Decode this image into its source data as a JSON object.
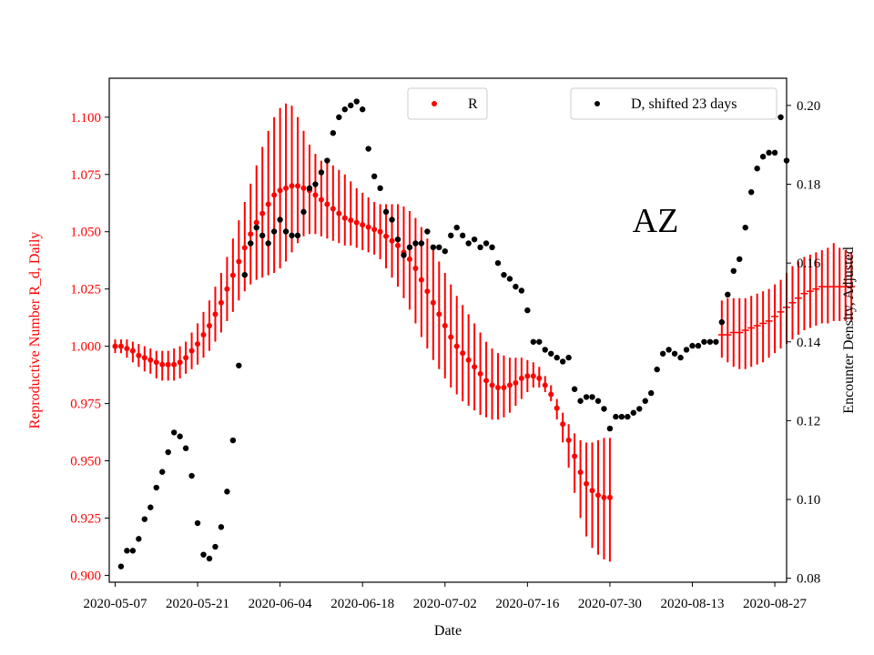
{
  "chart_data": {
    "type": "scatter",
    "annotation": "AZ",
    "xlabel": "Date",
    "ylabel_left": "Reproductive Number R_d, Daily",
    "ylabel_right": "Encounter Density, Adjusted",
    "x_ticks": [
      "2020-05-07",
      "2020-05-21",
      "2020-06-04",
      "2020-06-18",
      "2020-07-02",
      "2020-07-16",
      "2020-07-30",
      "2020-08-13",
      "2020-08-27"
    ],
    "xlim": [
      "2020-05-06",
      "2020-08-29"
    ],
    "y_left_ticks": [
      "0.900",
      "0.925",
      "0.950",
      "0.975",
      "1.000",
      "1.025",
      "1.050",
      "1.075",
      "1.100"
    ],
    "y_left_lim": [
      0.897,
      1.117
    ],
    "y_right_ticks": [
      "0.08",
      "0.10",
      "0.12",
      "0.14",
      "0.16",
      "0.18",
      "0.20"
    ],
    "y_right_lim": [
      0.079,
      0.2069
    ],
    "legend": {
      "left": {
        "label": "R",
        "placement": "top-center"
      },
      "right": {
        "label": "D, shifted 23 days",
        "placement": "top-right"
      }
    },
    "colors": {
      "R": "#ff0000",
      "D": "#000000"
    },
    "series": [
      {
        "name": "R",
        "axis": "left",
        "start_date": "2020-05-07",
        "end_date": "2020-08-18",
        "values": [
          1.0,
          1.0,
          0.999,
          0.998,
          0.996,
          0.995,
          0.994,
          0.993,
          0.992,
          0.992,
          0.992,
          0.993,
          0.995,
          0.998,
          1.001,
          1.005,
          1.009,
          1.014,
          1.019,
          1.025,
          1.031,
          1.037,
          1.043,
          1.049,
          1.054,
          1.058,
          1.062,
          1.066,
          1.068,
          1.069,
          1.07,
          1.07,
          1.069,
          1.068,
          1.066,
          1.064,
          1.062,
          1.06,
          1.058,
          1.056,
          1.055,
          1.054,
          1.053,
          1.052,
          1.051,
          1.05,
          1.048,
          1.046,
          1.044,
          1.041,
          1.038,
          1.034,
          1.029,
          1.024,
          1.019,
          1.014,
          1.009,
          1.004,
          1.0,
          0.997,
          0.994,
          0.991,
          0.988,
          0.985,
          0.983,
          0.982,
          0.982,
          0.983,
          0.984,
          0.986,
          0.987,
          0.987,
          0.986,
          0.983,
          0.979,
          0.973,
          0.966,
          0.959,
          0.952,
          0.945,
          0.94,
          0.937,
          0.935,
          0.934,
          0.934
        ],
        "lower": [
          0.997,
          0.997,
          0.995,
          0.993,
          0.991,
          0.989,
          0.988,
          0.986,
          0.985,
          0.985,
          0.985,
          0.986,
          0.988,
          0.99,
          0.992,
          0.995,
          0.998,
          1.002,
          1.006,
          1.011,
          1.015,
          1.02,
          1.024,
          1.027,
          1.029,
          1.03,
          1.031,
          1.032,
          1.034,
          1.037,
          1.041,
          1.045,
          1.048,
          1.049,
          1.049,
          1.048,
          1.047,
          1.046,
          1.045,
          1.044,
          1.044,
          1.043,
          1.042,
          1.041,
          1.04,
          1.038,
          1.034,
          1.03,
          1.026,
          1.021,
          1.016,
          1.01,
          1.004,
          0.999,
          0.994,
          0.99,
          0.986,
          0.982,
          0.979,
          0.976,
          0.974,
          0.972,
          0.97,
          0.969,
          0.968,
          0.968,
          0.969,
          0.971,
          0.974,
          0.977,
          0.98,
          0.982,
          0.982,
          0.98,
          0.976,
          0.968,
          0.958,
          0.947,
          0.936,
          0.925,
          0.917,
          0.912,
          0.909,
          0.907,
          0.906
        ],
        "upper": [
          1.003,
          1.003,
          1.003,
          1.002,
          1.001,
          1.0,
          0.999,
          0.998,
          0.998,
          0.998,
          0.999,
          1.0,
          1.002,
          1.006,
          1.01,
          1.015,
          1.02,
          1.026,
          1.032,
          1.039,
          1.047,
          1.055,
          1.063,
          1.071,
          1.079,
          1.087,
          1.094,
          1.1,
          1.104,
          1.106,
          1.105,
          1.1,
          1.094,
          1.088,
          1.084,
          1.081,
          1.08,
          1.079,
          1.077,
          1.075,
          1.072,
          1.069,
          1.067,
          1.065,
          1.063,
          1.062,
          1.062,
          1.062,
          1.062,
          1.061,
          1.059,
          1.056,
          1.052,
          1.047,
          1.042,
          1.037,
          1.032,
          1.027,
          1.022,
          1.018,
          1.014,
          1.01,
          1.006,
          1.002,
          0.999,
          0.997,
          0.996,
          0.995,
          0.995,
          0.995,
          0.994,
          0.993,
          0.991,
          0.987,
          0.983,
          0.977,
          0.971,
          0.966,
          0.962,
          0.959,
          0.958,
          0.958,
          0.959,
          0.96,
          0.96
        ]
      },
      {
        "name": "R",
        "axis": "left",
        "start_date": "2020-08-18",
        "end_date": "2020-08-28",
        "values": [
          1.005,
          1.005,
          1.006,
          1.006,
          1.007,
          1.008,
          1.009,
          1.01,
          1.011,
          1.013,
          1.015,
          1.017,
          1.019,
          1.021,
          1.023,
          1.024,
          1.025,
          1.026,
          1.026,
          1.026,
          1.026,
          1.026,
          1.026
        ],
        "lower": [
          0.995,
          0.993,
          0.991,
          0.99,
          0.99,
          0.991,
          0.992,
          0.993,
          0.995,
          0.997,
          0.999,
          1.001,
          1.003,
          1.005,
          1.007,
          1.008,
          1.009,
          1.01,
          1.01,
          1.011,
          1.011,
          1.011,
          1.011
        ],
        "upper": [
          1.02,
          1.021,
          1.021,
          1.021,
          1.021,
          1.022,
          1.023,
          1.024,
          1.025,
          1.027,
          1.029,
          1.032,
          1.035,
          1.037,
          1.039,
          1.04,
          1.041,
          1.042,
          1.043,
          1.045,
          1.043,
          1.042,
          1.041
        ]
      },
      {
        "name": "D, shifted 23 days",
        "axis": "right",
        "points": [
          [
            "2020-05-08",
            0.083
          ],
          [
            "2020-05-09",
            0.087
          ],
          [
            "2020-05-10",
            0.087
          ],
          [
            "2020-05-11",
            0.09
          ],
          [
            "2020-05-12",
            0.095
          ],
          [
            "2020-05-13",
            0.098
          ],
          [
            "2020-05-14",
            0.103
          ],
          [
            "2020-05-15",
            0.107
          ],
          [
            "2020-05-16",
            0.112
          ],
          [
            "2020-05-17",
            0.117
          ],
          [
            "2020-05-18",
            0.116
          ],
          [
            "2020-05-19",
            0.113
          ],
          [
            "2020-05-20",
            0.106
          ],
          [
            "2020-05-21",
            0.094
          ],
          [
            "2020-05-22",
            0.086
          ],
          [
            "2020-05-23",
            0.085
          ],
          [
            "2020-05-24",
            0.088
          ],
          [
            "2020-05-25",
            0.093
          ],
          [
            "2020-05-26",
            0.102
          ],
          [
            "2020-05-27",
            0.115
          ],
          [
            "2020-05-28",
            0.134
          ],
          [
            "2020-05-29",
            0.157
          ],
          [
            "2020-05-30",
            0.165
          ],
          [
            "2020-05-31",
            0.169
          ],
          [
            "2020-06-01",
            0.167
          ],
          [
            "2020-06-02",
            0.165
          ],
          [
            "2020-06-03",
            0.168
          ],
          [
            "2020-06-04",
            0.171
          ],
          [
            "2020-06-05",
            0.168
          ],
          [
            "2020-06-06",
            0.167
          ],
          [
            "2020-06-07",
            0.167
          ],
          [
            "2020-06-08",
            0.173
          ],
          [
            "2020-06-09",
            0.179
          ],
          [
            "2020-06-10",
            0.18
          ],
          [
            "2020-06-11",
            0.183
          ],
          [
            "2020-06-12",
            0.186
          ],
          [
            "2020-06-13",
            0.193
          ],
          [
            "2020-06-14",
            0.197
          ],
          [
            "2020-06-15",
            0.199
          ],
          [
            "2020-06-16",
            0.2
          ],
          [
            "2020-06-17",
            0.201
          ],
          [
            "2020-06-18",
            0.199
          ],
          [
            "2020-06-19",
            0.189
          ],
          [
            "2020-06-20",
            0.182
          ],
          [
            "2020-06-21",
            0.179
          ],
          [
            "2020-06-22",
            0.173
          ],
          [
            "2020-06-23",
            0.171
          ],
          [
            "2020-06-24",
            0.166
          ],
          [
            "2020-06-25",
            0.162
          ],
          [
            "2020-06-26",
            0.164
          ],
          [
            "2020-06-27",
            0.165
          ],
          [
            "2020-06-28",
            0.165
          ],
          [
            "2020-06-29",
            0.168
          ],
          [
            "2020-06-30",
            0.164
          ],
          [
            "2020-07-01",
            0.164
          ],
          [
            "2020-07-02",
            0.163
          ],
          [
            "2020-07-03",
            0.167
          ],
          [
            "2020-07-04",
            0.169
          ],
          [
            "2020-07-05",
            0.167
          ],
          [
            "2020-07-06",
            0.165
          ],
          [
            "2020-07-07",
            0.166
          ],
          [
            "2020-07-08",
            0.164
          ],
          [
            "2020-07-09",
            0.165
          ],
          [
            "2020-07-10",
            0.164
          ],
          [
            "2020-07-11",
            0.16
          ],
          [
            "2020-07-12",
            0.157
          ],
          [
            "2020-07-13",
            0.156
          ],
          [
            "2020-07-14",
            0.154
          ],
          [
            "2020-07-15",
            0.153
          ],
          [
            "2020-07-16",
            0.148
          ],
          [
            "2020-07-17",
            0.14
          ],
          [
            "2020-07-18",
            0.14
          ],
          [
            "2020-07-19",
            0.138
          ],
          [
            "2020-07-20",
            0.137
          ],
          [
            "2020-07-21",
            0.136
          ],
          [
            "2020-07-22",
            0.135
          ],
          [
            "2020-07-23",
            0.136
          ],
          [
            "2020-07-24",
            0.128
          ],
          [
            "2020-07-25",
            0.125
          ],
          [
            "2020-07-26",
            0.126
          ],
          [
            "2020-07-27",
            0.126
          ],
          [
            "2020-07-28",
            0.125
          ],
          [
            "2020-07-29",
            0.123
          ],
          [
            "2020-07-30",
            0.118
          ],
          [
            "2020-07-31",
            0.121
          ],
          [
            "2020-08-01",
            0.121
          ],
          [
            "2020-08-02",
            0.121
          ],
          [
            "2020-08-03",
            0.122
          ],
          [
            "2020-08-04",
            0.123
          ],
          [
            "2020-08-05",
            0.125
          ],
          [
            "2020-08-06",
            0.127
          ],
          [
            "2020-08-07",
            0.133
          ],
          [
            "2020-08-08",
            0.137
          ],
          [
            "2020-08-09",
            0.138
          ],
          [
            "2020-08-10",
            0.137
          ],
          [
            "2020-08-11",
            0.136
          ],
          [
            "2020-08-12",
            0.138
          ],
          [
            "2020-08-13",
            0.139
          ],
          [
            "2020-08-14",
            0.139
          ],
          [
            "2020-08-15",
            0.14
          ],
          [
            "2020-08-16",
            0.14
          ],
          [
            "2020-08-17",
            0.14
          ],
          [
            "2020-08-18",
            0.145
          ],
          [
            "2020-08-19",
            0.152
          ],
          [
            "2020-08-20",
            0.158
          ],
          [
            "2020-08-21",
            0.161
          ],
          [
            "2020-08-22",
            0.169
          ],
          [
            "2020-08-23",
            0.178
          ],
          [
            "2020-08-24",
            0.184
          ],
          [
            "2020-08-25",
            0.187
          ],
          [
            "2020-08-26",
            0.188
          ],
          [
            "2020-08-27",
            0.188
          ],
          [
            "2020-08-28",
            0.197
          ],
          [
            "2020-08-29",
            0.186
          ]
        ]
      }
    ]
  }
}
